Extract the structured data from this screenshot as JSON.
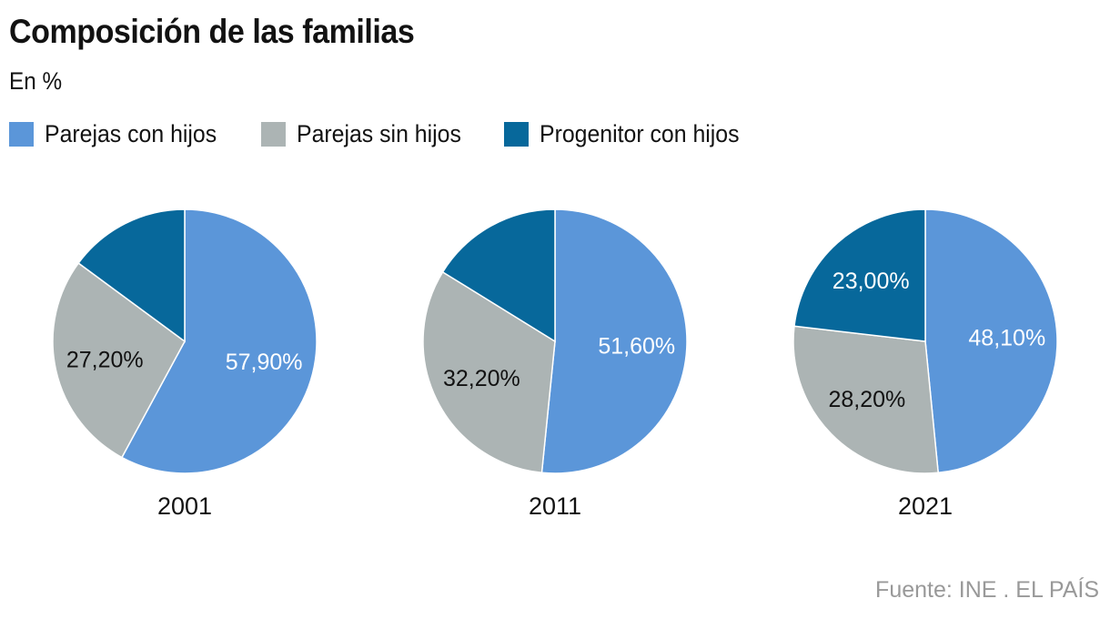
{
  "chart_data": {
    "type": "pie",
    "title": "Composición de las familias",
    "subtitle": "En %",
    "legend": {
      "placement": "top-left",
      "entries": [
        {
          "name": "Parejas con hijos",
          "color": "#5b96d9"
        },
        {
          "name": "Parejas sin hijos",
          "color": "#acb4b4"
        },
        {
          "name": "Progenitor con hijos",
          "color": "#07689b"
        }
      ]
    },
    "pies": [
      {
        "label": "2001",
        "slices": [
          {
            "name": "Parejas con hijos",
            "value": 57.9,
            "label": "57,90%",
            "label_color": "#ffffff"
          },
          {
            "name": "Parejas sin hijos",
            "value": 27.2,
            "label": "27,20%",
            "label_color": "#121212"
          },
          {
            "name": "Progenitor con hijos",
            "value": 14.9,
            "label": "",
            "label_color": "#ffffff"
          }
        ]
      },
      {
        "label": "2011",
        "slices": [
          {
            "name": "Parejas con hijos",
            "value": 51.6,
            "label": "51,60%",
            "label_color": "#ffffff"
          },
          {
            "name": "Parejas sin hijos",
            "value": 32.2,
            "label": "32,20%",
            "label_color": "#121212"
          },
          {
            "name": "Progenitor con hijos",
            "value": 16.2,
            "label": "",
            "label_color": "#ffffff"
          }
        ]
      },
      {
        "label": "2021",
        "slices": [
          {
            "name": "Parejas con hijos",
            "value": 48.1,
            "label": "48,10%",
            "label_color": "#ffffff"
          },
          {
            "name": "Parejas sin hijos",
            "value": 28.2,
            "label": "28,20%",
            "label_color": "#121212"
          },
          {
            "name": "Progenitor con hijos",
            "value": 23.0,
            "label": "23,00%",
            "label_color": "#ffffff"
          }
        ]
      }
    ],
    "source": "Fuente: INE . EL PAÍS"
  }
}
